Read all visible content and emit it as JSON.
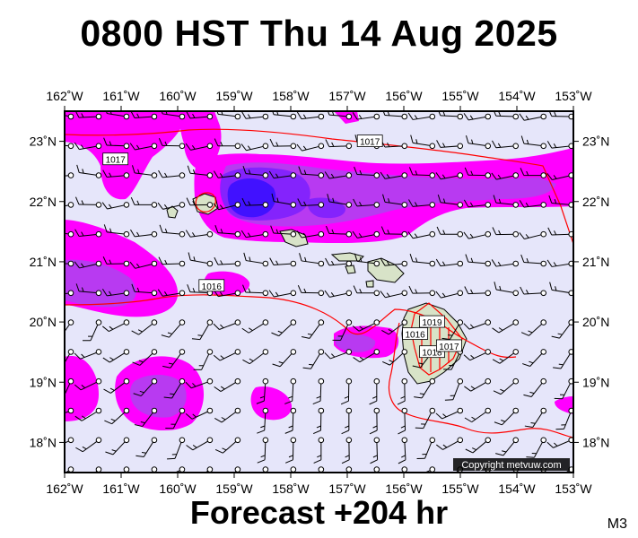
{
  "title": "0800 HST Thu 14 Aug 2025",
  "footer": "Forecast +204 hr",
  "model_tag": "M3",
  "copyright": "Copyright metvuw.com",
  "map": {
    "lon_min": -162,
    "lon_max": -153,
    "lat_min": 17.5,
    "lat_max": 23.5,
    "lon_tick_labels": [
      "162˚W",
      "161˚W",
      "160˚W",
      "159˚W",
      "158˚W",
      "157˚W",
      "156˚W",
      "155˚W",
      "154˚W",
      "153˚W"
    ],
    "lat_tick_labels": [
      "18˚N",
      "19˚N",
      "20˚N",
      "21˚N",
      "22˚N",
      "23˚N"
    ],
    "background_color": "#e6e6fa",
    "isobar_color": "#ff0000",
    "isobar_labels": [
      {
        "text": "1017",
        "lon": -161.1,
        "lat": 22.7
      },
      {
        "text": "1017",
        "lon": -156.6,
        "lat": 23.0
      },
      {
        "text": "1016",
        "lon": -159.4,
        "lat": 20.6
      },
      {
        "text": "1016",
        "lon": -155.8,
        "lat": 19.8
      },
      {
        "text": "1019",
        "lon": -155.5,
        "lat": 20.0
      },
      {
        "text": "1018",
        "lon": -155.5,
        "lat": 19.5
      },
      {
        "text": "1017",
        "lon": -155.2,
        "lat": 19.6
      }
    ],
    "precip_colors": {
      "light": "#ff00ff",
      "medium": "#b040f0",
      "heavy": "#7b20ff",
      "extreme": "#3a10ff"
    }
  }
}
